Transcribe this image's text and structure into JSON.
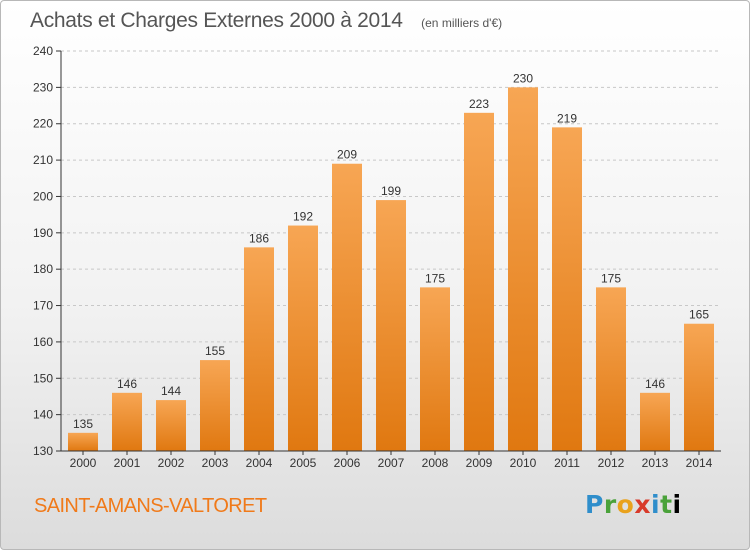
{
  "header": {
    "title": "Achats et Charges Externes 2000 à 2014",
    "units": "(en milliers d'€)"
  },
  "footer": {
    "town": "SAINT-AMANS-VALTORET",
    "logo_text": "Proxiti"
  },
  "colors": {
    "bar_light": "#f7a654",
    "bar_dark": "#e07810",
    "town_text": "#f07a1a",
    "axis": "#333333",
    "grid": "#c8c8c8"
  },
  "chart_data": {
    "type": "bar",
    "title": "Achats et Charges Externes 2000 à 2014",
    "xlabel": "",
    "ylabel": "",
    "categories": [
      "2000",
      "2001",
      "2002",
      "2003",
      "2004",
      "2005",
      "2006",
      "2007",
      "2008",
      "2009",
      "2010",
      "2011",
      "2012",
      "2013",
      "2014"
    ],
    "values": [
      135,
      146,
      144,
      155,
      186,
      192,
      209,
      199,
      175,
      223,
      230,
      219,
      175,
      146,
      165
    ],
    "ylim": [
      130,
      240
    ],
    "yticks": [
      130,
      140,
      150,
      160,
      170,
      180,
      190,
      200,
      210,
      220,
      230,
      240
    ],
    "grid": true,
    "data_labels": true
  }
}
